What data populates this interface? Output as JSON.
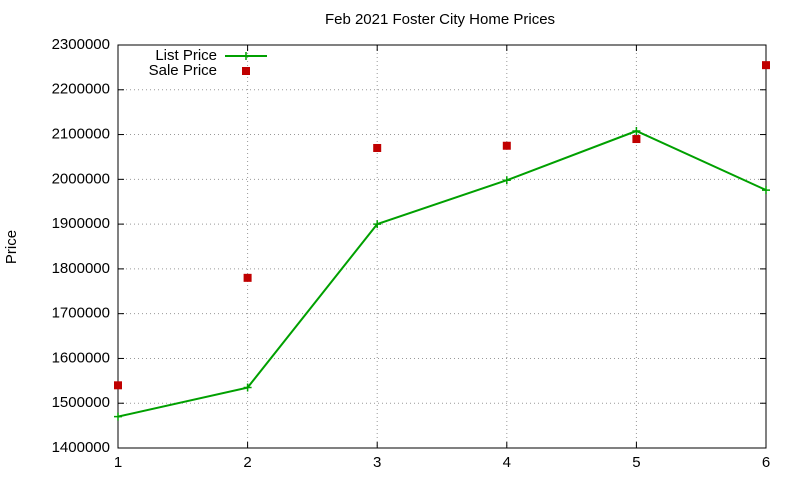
{
  "chart_data": {
    "type": "line",
    "title": "Feb 2021 Foster City Home Prices",
    "y_label": "Price",
    "x": [
      1,
      2,
      3,
      4,
      5,
      6
    ],
    "series": [
      {
        "name": "List Price",
        "color": "#00a000",
        "style": "linespoints",
        "values": [
          1470000,
          1535000,
          1900000,
          1998000,
          2108000,
          1976000
        ]
      },
      {
        "name": "Sale Price",
        "color": "#c00000",
        "style": "points",
        "values": [
          1540000,
          1780000,
          2070000,
          2075000,
          2090000,
          2255000
        ]
      }
    ],
    "xlim": [
      1,
      6
    ],
    "xticks": [
      1,
      2,
      3,
      4,
      5,
      6
    ],
    "ylim": [
      1400000,
      2300000
    ],
    "yticks": [
      1400000,
      1500000,
      1600000,
      1700000,
      1800000,
      1900000,
      2000000,
      2100000,
      2200000,
      2300000
    ],
    "grid": true,
    "legend": "top-left"
  }
}
